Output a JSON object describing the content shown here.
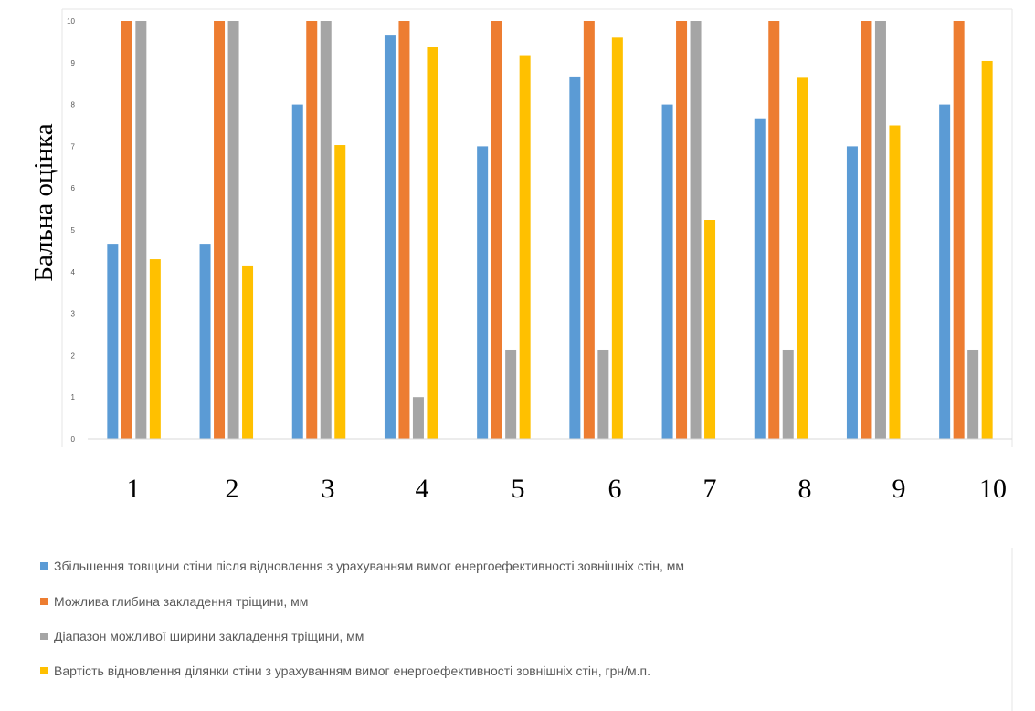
{
  "chart_data": {
    "type": "bar",
    "title": "",
    "xlabel": "",
    "ylabel": "Бальна оцінка",
    "categories": [
      "1",
      "2",
      "3",
      "4",
      "5",
      "6",
      "7",
      "8",
      "9",
      "10"
    ],
    "ylim": [
      0,
      10
    ],
    "yticks": [
      "0",
      "1",
      "2",
      "3",
      "4",
      "5",
      "6",
      "7",
      "8",
      "9",
      "10"
    ],
    "grid": false,
    "legend_position": "bottom",
    "series": [
      {
        "name": "Збільшення товщини стіни після відновлення з урахуванням вимог енергоефективності зовнішніх стін, мм",
        "color": "#5B9BD5",
        "values": [
          4.67,
          4.67,
          8.0,
          9.67,
          7.0,
          8.67,
          8.0,
          7.67,
          7.0,
          8.0
        ]
      },
      {
        "name": "Можлива глибина закладення тріщини, мм",
        "color": "#ED7D31",
        "values": [
          10,
          10,
          10,
          10,
          10,
          10,
          10,
          10,
          10,
          10
        ]
      },
      {
        "name": "Діапазон можливої ширини закладення тріщини, мм",
        "color": "#A5A5A5",
        "values": [
          10,
          10,
          10,
          1.0,
          2.14,
          2.14,
          10,
          2.14,
          10,
          2.14
        ]
      },
      {
        "name": "Вартість відновлення ділянки стіни з урахуванням вимог енергоефективності зовнішніх стін, грн/м.п.",
        "color": "#FFC000",
        "values": [
          4.3,
          4.15,
          7.03,
          9.37,
          9.18,
          9.6,
          5.24,
          8.66,
          7.5,
          9.04
        ]
      }
    ]
  }
}
